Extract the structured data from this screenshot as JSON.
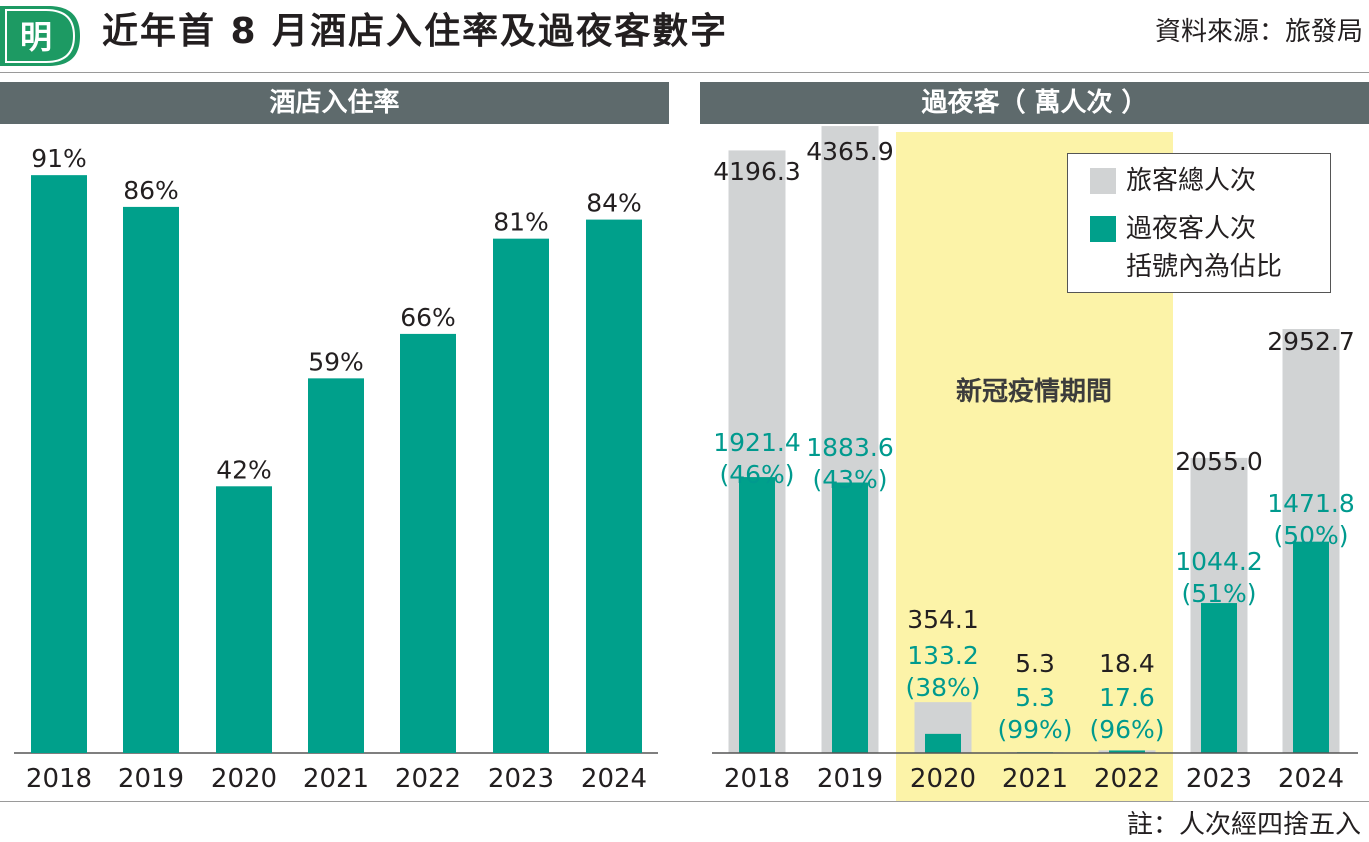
{
  "header": {
    "logo_char": "明",
    "title": "近年首 8 月酒店入住率及過夜客數字",
    "source": "資料來源：旅發局"
  },
  "colors": {
    "green": "#00a08b",
    "grey_bar": "#d1d3d4",
    "highlight": "#fcf3a8",
    "header_bar": "#5e6a6c",
    "teal_label": "#009a8e",
    "logo": "#1d9a63"
  },
  "left_panel": {
    "title": "酒店入住率"
  },
  "right_panel": {
    "title": "過夜客（ 萬人次 ）",
    "highlight_label": "新冠疫情期間"
  },
  "legend": {
    "total_label": "旅客總人次",
    "overnight_label": "過夜客人次",
    "note": "括號內為佔比"
  },
  "footnote": "註：人次經四捨五入",
  "chart_data": [
    {
      "type": "bar",
      "title": "酒店入住率",
      "categories": [
        "2018",
        "2019",
        "2020",
        "2021",
        "2022",
        "2023",
        "2024"
      ],
      "values": [
        91,
        86,
        42,
        59,
        66,
        81,
        84
      ],
      "labels": [
        "91%",
        "86%",
        "42%",
        "59%",
        "66%",
        "81%",
        "84%"
      ],
      "ylim": [
        0,
        100
      ],
      "grid": false
    },
    {
      "type": "bar",
      "title": "過夜客（ 萬人次 ）",
      "categories": [
        "2018",
        "2019",
        "2020",
        "2021",
        "2022",
        "2023",
        "2024"
      ],
      "highlight_categories": [
        "2020",
        "2021",
        "2022"
      ],
      "series": [
        {
          "name": "旅客總人次",
          "values": [
            4196.3,
            4365.9,
            354.1,
            5.3,
            18.4,
            2055.0,
            2952.7
          ],
          "labels": [
            "4196.3",
            "4365.9",
            "354.1",
            "5.3",
            "18.4",
            "2055.0",
            "2952.7"
          ]
        },
        {
          "name": "過夜客人次",
          "values": [
            1921.4,
            1883.6,
            133.2,
            5.3,
            17.6,
            1044.2,
            1471.8
          ],
          "labels": [
            "1921.4",
            "1883.6",
            "133.2",
            "5.3",
            "17.6",
            "1044.2",
            "1471.8"
          ],
          "share_labels": [
            "(46%)",
            "(43%)",
            "(38%)",
            "(99%)",
            "(96%)",
            "(51%)",
            "(50%)"
          ]
        }
      ],
      "legend_position": "top-right",
      "grid": false
    }
  ]
}
